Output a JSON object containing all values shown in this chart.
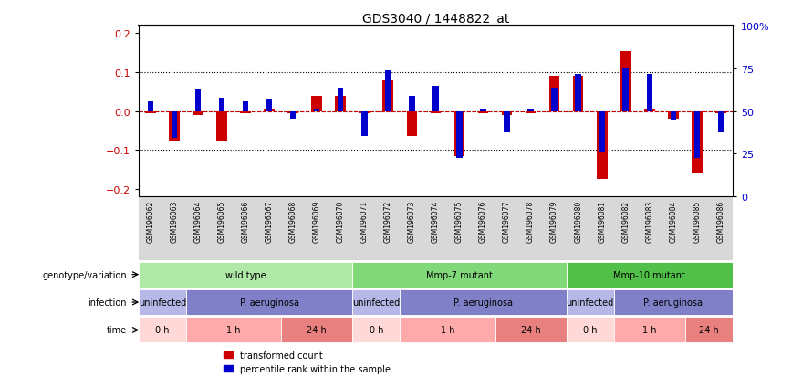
{
  "title": "GDS3040 / 1448822_at",
  "samples": [
    "GSM196062",
    "GSM196063",
    "GSM196064",
    "GSM196065",
    "GSM196066",
    "GSM196067",
    "GSM196068",
    "GSM196069",
    "GSM196070",
    "GSM196071",
    "GSM196072",
    "GSM196073",
    "GSM196074",
    "GSM196075",
    "GSM196076",
    "GSM196077",
    "GSM196078",
    "GSM196079",
    "GSM196080",
    "GSM196081",
    "GSM196082",
    "GSM196083",
    "GSM196084",
    "GSM196085",
    "GSM196086"
  ],
  "red_values": [
    -0.005,
    -0.075,
    -0.01,
    -0.075,
    -0.005,
    0.005,
    -0.005,
    0.04,
    0.04,
    -0.005,
    0.08,
    -0.065,
    -0.005,
    -0.115,
    -0.005,
    -0.01,
    -0.005,
    0.09,
    0.09,
    -0.175,
    0.155,
    0.005,
    -0.02,
    -0.16,
    -0.005
  ],
  "blue_values": [
    0.025,
    -0.07,
    0.055,
    0.035,
    0.025,
    0.03,
    -0.02,
    0.005,
    0.06,
    -0.065,
    0.105,
    0.04,
    0.065,
    -0.12,
    0.005,
    -0.055,
    0.005,
    0.06,
    0.095,
    -0.105,
    0.11,
    0.095,
    -0.025,
    -0.12,
    -0.055
  ],
  "genotype_groups": [
    {
      "label": "wild type",
      "start": 0,
      "end": 8,
      "color": "#b0e8a8"
    },
    {
      "label": "Mmp-7 mutant",
      "start": 9,
      "end": 17,
      "color": "#80d878"
    },
    {
      "label": "Mmp-10 mutant",
      "start": 18,
      "end": 24,
      "color": "#50c048"
    }
  ],
  "infection_groups": [
    {
      "label": "uninfected",
      "start": 0,
      "end": 1,
      "color": "#b8b8e8"
    },
    {
      "label": "P. aeruginosa",
      "start": 2,
      "end": 8,
      "color": "#8080c8"
    },
    {
      "label": "uninfected",
      "start": 9,
      "end": 10,
      "color": "#b8b8e8"
    },
    {
      "label": "P. aeruginosa",
      "start": 11,
      "end": 17,
      "color": "#8080c8"
    },
    {
      "label": "uninfected",
      "start": 18,
      "end": 19,
      "color": "#b8b8e8"
    },
    {
      "label": "P. aeruginosa",
      "start": 20,
      "end": 24,
      "color": "#8080c8"
    }
  ],
  "time_groups": [
    {
      "label": "0 h",
      "start": 0,
      "end": 1,
      "color": "#ffd8d8"
    },
    {
      "label": "1 h",
      "start": 2,
      "end": 5,
      "color": "#ffaaaa"
    },
    {
      "label": "24 h",
      "start": 6,
      "end": 8,
      "color": "#e88080"
    },
    {
      "label": "0 h",
      "start": 9,
      "end": 10,
      "color": "#ffd8d8"
    },
    {
      "label": "1 h",
      "start": 11,
      "end": 14,
      "color": "#ffaaaa"
    },
    {
      "label": "24 h",
      "start": 15,
      "end": 17,
      "color": "#e88080"
    },
    {
      "label": "0 h",
      "start": 18,
      "end": 19,
      "color": "#ffd8d8"
    },
    {
      "label": "1 h",
      "start": 20,
      "end": 22,
      "color": "#ffaaaa"
    },
    {
      "label": "24 h",
      "start": 23,
      "end": 24,
      "color": "#e88080"
    }
  ],
  "ylim": [
    -0.22,
    0.22
  ],
  "yticks_left": [
    -0.2,
    -0.1,
    0.0,
    0.1,
    0.2
  ],
  "yticks_right_pct": [
    0,
    25,
    50,
    75,
    100
  ],
  "red_color": "#cc0000",
  "blue_color": "#0000cc",
  "red_bar_width": 0.45,
  "blue_bar_width": 0.25,
  "legend_red": "transformed count",
  "legend_blue": "percentile rank within the sample",
  "sample_bg_color": "#d8d8d8",
  "row_label_color": "#000000"
}
